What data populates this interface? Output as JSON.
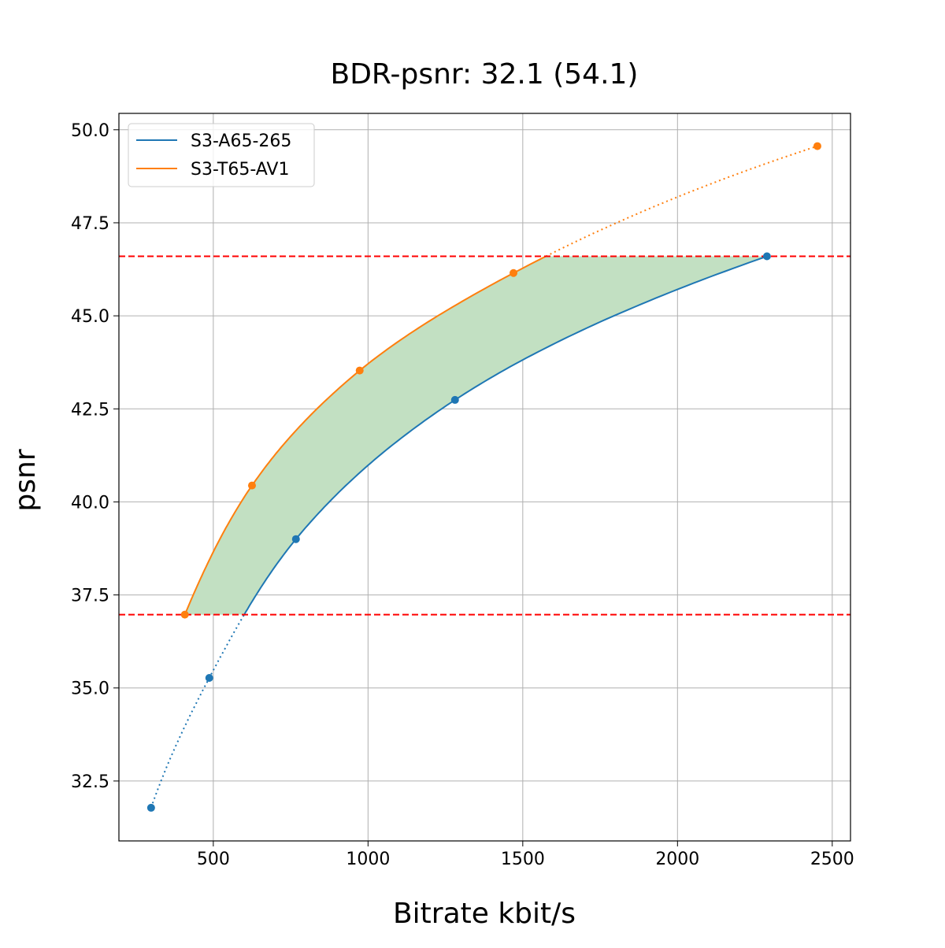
{
  "chart_data": {
    "type": "line",
    "title": "BDR-psnr: 32.1 (54.1)",
    "xlabel": "Bitrate kbit/s",
    "ylabel": "psnr",
    "xlim": [
      195,
      2559
    ],
    "ylim": [
      30.89,
      50.44
    ],
    "xticks": [
      500,
      1000,
      1500,
      2000,
      2500
    ],
    "yticks": [
      32.5,
      35.0,
      37.5,
      40.0,
      42.5,
      45.0,
      47.5,
      50.0
    ],
    "xtick_labels": [
      "500",
      "1000",
      "1500",
      "2000",
      "2500"
    ],
    "ytick_labels": [
      "32.5",
      "35.0",
      "37.5",
      "40.0",
      "42.5",
      "45.0",
      "47.5",
      "50.0"
    ],
    "grid": true,
    "legend": "top-left",
    "series": [
      {
        "name": "S3-A65-265",
        "color": "#1f77b4",
        "x": [
          299,
          487,
          767,
          1281,
          2289
        ],
        "y": [
          31.78,
          35.27,
          39.0,
          42.74,
          46.6
        ]
      },
      {
        "name": "S3-T65-AV1",
        "color": "#ff7f0e",
        "x": [
          408,
          625,
          973,
          1470,
          2452
        ],
        "y": [
          36.97,
          40.44,
          43.53,
          46.15,
          49.56
        ]
      }
    ],
    "reference_lines": {
      "y": [
        46.6,
        36.97
      ],
      "color": "#ff0000",
      "style": "dashed"
    },
    "fill_between": {
      "color": "#c2e0c2",
      "y_range": [
        36.97,
        46.6
      ]
    }
  }
}
